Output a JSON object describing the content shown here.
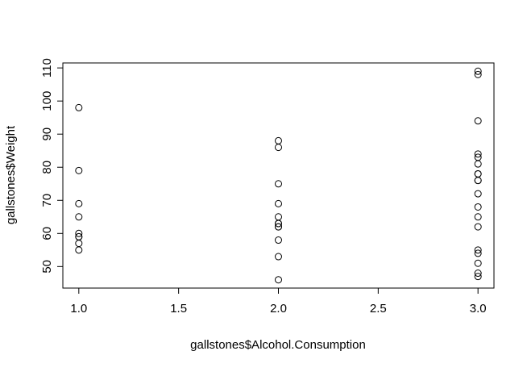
{
  "chart_data": {
    "type": "scatter",
    "title": "",
    "xlabel": "gallstones$Alcohol.Consumption",
    "ylabel": "gallstones$Weight",
    "xlim": [
      0.92,
      3.08
    ],
    "ylim": [
      43.5,
      111.5
    ],
    "grid": false,
    "x_ticks": [
      1.0,
      1.5,
      2.0,
      2.5,
      3.0
    ],
    "x_tick_labels": [
      "1.0",
      "1.5",
      "2.0",
      "2.5",
      "3.0"
    ],
    "y_ticks": [
      50,
      60,
      70,
      80,
      90,
      100,
      110
    ],
    "y_tick_labels": [
      "50",
      "60",
      "70",
      "80",
      "90",
      "100",
      "110"
    ],
    "series": [
      {
        "x": [
          1.0,
          1.0,
          1.0,
          1.0,
          1.0,
          1.0,
          1.0,
          1.0,
          1.0,
          2.0,
          2.0,
          2.0,
          2.0,
          2.0,
          2.0,
          2.0,
          2.0,
          2.0,
          2.0,
          2.0,
          2.0,
          3.0,
          3.0,
          3.0,
          3.0,
          3.0,
          3.0,
          3.0,
          3.0,
          3.0,
          3.0,
          3.0,
          3.0,
          3.0,
          3.0,
          3.0,
          3.0,
          3.0,
          3.0,
          3.0
        ],
        "y": [
          98,
          79,
          69,
          65,
          60,
          59,
          57,
          55,
          59,
          88,
          86,
          75,
          69,
          65,
          63,
          62,
          58,
          53,
          46,
          62,
          63,
          109,
          108,
          94,
          84,
          83,
          81,
          78,
          76,
          72,
          68,
          65,
          62,
          55,
          54,
          51,
          48,
          47,
          78,
          76
        ]
      }
    ],
    "colors": {
      "point_stroke": "#000000",
      "axis": "#000000",
      "background": "#ffffff"
    }
  }
}
